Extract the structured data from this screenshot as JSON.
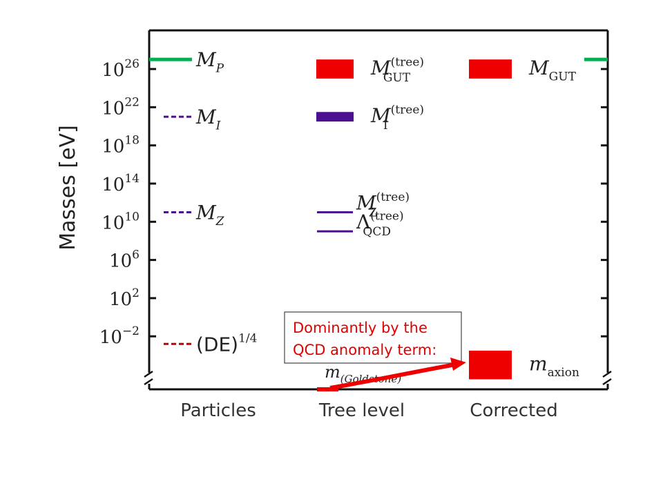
{
  "chart_data": {
    "type": "scatter",
    "title": "",
    "ylabel": "Masses [eV]",
    "yscale": "log",
    "y_ticks": [
      {
        "exp": 26,
        "label_base": "10",
        "label_exp": "26"
      },
      {
        "exp": 22,
        "label_base": "10",
        "label_exp": "22"
      },
      {
        "exp": 18,
        "label_base": "10",
        "label_exp": "18"
      },
      {
        "exp": 14,
        "label_base": "10",
        "label_exp": "14"
      },
      {
        "exp": 10,
        "label_base": "10",
        "label_exp": "10"
      },
      {
        "exp": 6,
        "label_base": "10",
        "label_exp": "6"
      },
      {
        "exp": 2,
        "label_base": "10",
        "label_exp": "2"
      },
      {
        "exp": -2,
        "label_base": "10",
        "label_exp": "−2"
      }
    ],
    "categories": [
      "Particles",
      "Tree level",
      "Corrected"
    ],
    "grid": false,
    "axis_break": true,
    "colors": {
      "green": "#00b050",
      "red": "#ee0000",
      "purple": "#4b0f91",
      "darkred": "#c00000",
      "callout_text": "#e00000"
    },
    "levels": [
      {
        "name_main": "M",
        "name_sub": "P",
        "name_sup": "",
        "log_value": 27.0,
        "style": "edge",
        "color": "#00b050"
      },
      {
        "name_main": "M",
        "name_sub": "I",
        "name_sup": "",
        "log_value": 21.0,
        "category": "Particles",
        "style": "dashed",
        "color": "#4b0f91"
      },
      {
        "name_main": "M",
        "name_sub": "Z",
        "name_sup": "",
        "log_value": 11.0,
        "category": "Particles",
        "style": "dashed",
        "color": "#4b0f91"
      },
      {
        "name_main": "(DE)",
        "name_sub": "",
        "name_sup": "1/4",
        "log_value": -2.8,
        "category": "Particles",
        "style": "dashed",
        "color": "#c00000"
      },
      {
        "name_main": "M",
        "name_sub": "GUT",
        "name_sup": "(tree)",
        "log_value_low": 25.0,
        "log_value_high": 27.0,
        "category": "Tree level",
        "style": "band",
        "color": "#ee0000"
      },
      {
        "name_main": "M",
        "name_sub": "I",
        "name_sup": "(tree)",
        "log_value_low": 20.5,
        "log_value_high": 21.5,
        "category": "Tree level",
        "style": "band",
        "color": "#4b0f91"
      },
      {
        "name_main": "M",
        "name_sub": "Z",
        "name_sup": "(tree)",
        "log_value": 11.0,
        "category": "Tree level",
        "style": "line",
        "color": "#4b0f91"
      },
      {
        "name_main": "Λ",
        "name_sub": "QCD",
        "name_sup": "(tree)",
        "log_value": 9.0,
        "category": "Tree level",
        "style": "line",
        "color": "#4b0f91"
      },
      {
        "name_main": "m",
        "name_sub": "(Goldstone)",
        "name_sup": "",
        "log_value": -8.0,
        "category": "Tree level",
        "style": "floor",
        "color": "#ee0000"
      },
      {
        "name_main": "M",
        "name_sub": "GUT",
        "name_sup": "",
        "log_value_low": 25.0,
        "log_value_high": 27.0,
        "category": "Corrected",
        "style": "band",
        "color": "#ee0000"
      },
      {
        "name_main": "m",
        "name_sub": "axion",
        "name_sup": "",
        "log_value_low": -6.5,
        "log_value_high": -3.5,
        "category": "Corrected",
        "style": "band",
        "color": "#ee0000"
      }
    ],
    "annotation": {
      "line1": "Dominantly by the",
      "line2": "QCD anomaly term:"
    }
  }
}
